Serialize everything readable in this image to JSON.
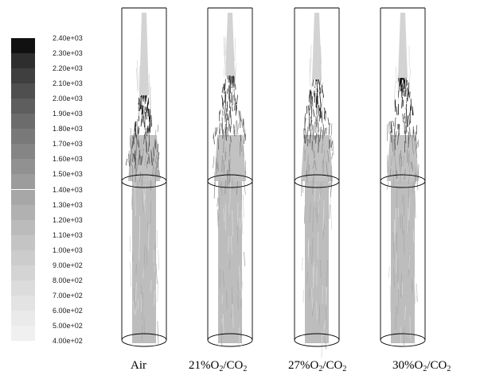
{
  "colorbar": {
    "labels": [
      "2.40e+03",
      "2.30e+03",
      "2.20e+03",
      "2.10e+03",
      "2.00e+03",
      "1.90e+03",
      "1.80e+03",
      "1.70e+03",
      "1.60e+03",
      "1.50e+03",
      "1.40e+03",
      "1.30e+03",
      "1.20e+03",
      "1.10e+03",
      "1.00e+03",
      "9.00e+02",
      "8.00e+02",
      "7.00e+02",
      "6.00e+02",
      "5.00e+02",
      "4.00e+02"
    ],
    "colors": [
      "#111111",
      "#2e2e2e",
      "#3f3f3f",
      "#4f4f4f",
      "#5e5e5e",
      "#6c6c6c",
      "#797979",
      "#858585",
      "#919191",
      "#9c9c9c",
      "#a7a7a7",
      "#b1b1b1",
      "#bbbbbb",
      "#c4c4c4",
      "#cccccc",
      "#d4d4d4",
      "#dcdcdc",
      "#e3e3e3",
      "#eaeaea",
      "#f0f0f0"
    ]
  },
  "panels": [
    {
      "caption": "Air",
      "dark_color": "#151515"
    },
    {
      "caption_main": "21%O",
      "caption_sub": "2",
      "caption_tail": "/CO",
      "caption_sub2": "2",
      "dark_color": "#333333"
    },
    {
      "caption_main": "27%O",
      "caption_sub": "2",
      "caption_tail": "/CO",
      "caption_sub2": "2",
      "dark_color": "#1a1a1a"
    },
    {
      "caption_main": "30%O",
      "caption_sub": "2",
      "caption_tail": "/CO",
      "caption_sub2": "2",
      "dark_color": "#0d0d0d"
    }
  ]
}
